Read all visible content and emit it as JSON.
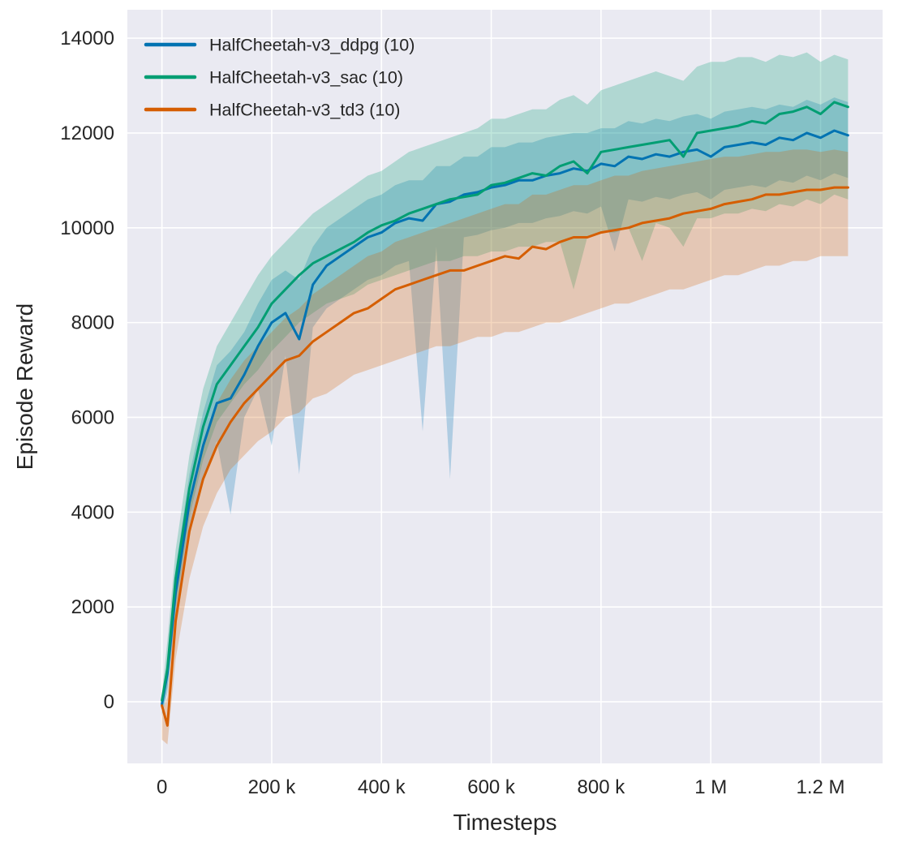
{
  "chart_data": {
    "type": "line",
    "title": "",
    "xlabel": "Timesteps",
    "ylabel": "Episode Reward",
    "legend_position": "upper-left",
    "legend_frame": false,
    "grid": true,
    "xlim_kilosteps": [
      -63,
      1313
    ],
    "ylim": [
      -1300,
      14600
    ],
    "x_ticks": {
      "values_kilosteps": [
        0,
        200,
        400,
        600,
        800,
        1000,
        1200
      ],
      "labels": [
        "0",
        "200 k",
        "400 k",
        "600 k",
        "800 k",
        "1 M",
        "1.2 M"
      ]
    },
    "y_ticks": {
      "values": [
        0,
        2000,
        4000,
        6000,
        8000,
        10000,
        12000,
        14000
      ],
      "labels": [
        "0",
        "2000",
        "4000",
        "6000",
        "8000",
        "10000",
        "12000",
        "14000"
      ]
    },
    "x_kilosteps": [
      0,
      10,
      25,
      50,
      75,
      100,
      125,
      150,
      175,
      200,
      225,
      250,
      275,
      300,
      325,
      350,
      375,
      400,
      425,
      450,
      475,
      500,
      525,
      550,
      575,
      600,
      625,
      650,
      675,
      700,
      725,
      750,
      775,
      800,
      825,
      850,
      875,
      900,
      925,
      950,
      975,
      1000,
      1025,
      1050,
      1075,
      1100,
      1125,
      1150,
      1175,
      1200,
      1225,
      1250
    ],
    "band_opacity": 0.25,
    "series": [
      {
        "name": "ddpg",
        "label": "HalfCheetah-v3_ddpg (10)",
        "color": "#0173b2",
        "values": [
          -50,
          600,
          2300,
          4200,
          5400,
          6300,
          6400,
          6900,
          7500,
          8000,
          8200,
          7650,
          8800,
          9200,
          9400,
          9600,
          9800,
          9900,
          10100,
          10200,
          10150,
          10500,
          10550,
          10700,
          10750,
          10850,
          10900,
          11000,
          11000,
          11100,
          11150,
          11250,
          11200,
          11350,
          11300,
          11500,
          11450,
          11550,
          11500,
          11600,
          11650,
          11500,
          11700,
          11750,
          11800,
          11750,
          11900,
          11850,
          12000,
          11900,
          12050,
          11950
        ],
        "band_upper": [
          100,
          900,
          2800,
          4800,
          6100,
          7100,
          7400,
          7800,
          8400,
          8900,
          9100,
          8900,
          9600,
          10000,
          10200,
          10400,
          10600,
          10700,
          10900,
          11000,
          11000,
          11300,
          11300,
          11500,
          11500,
          11700,
          11700,
          11800,
          11800,
          11900,
          11950,
          12000,
          12000,
          12100,
          12100,
          12250,
          12200,
          12300,
          12250,
          12350,
          12400,
          12300,
          12450,
          12500,
          12550,
          12500,
          12600,
          12550,
          12700,
          12600,
          12750,
          12650
        ],
        "band_lower": [
          -300,
          200,
          1800,
          3600,
          4700,
          5500,
          3950,
          6000,
          6600,
          5400,
          7300,
          4800,
          7900,
          8300,
          8500,
          8700,
          8900,
          9000,
          9200,
          9300,
          5700,
          9600,
          4700,
          9800,
          9850,
          9950,
          10000,
          10100,
          10100,
          10200,
          10250,
          10350,
          10300,
          10450,
          9500,
          10600,
          10550,
          10650,
          10600,
          10700,
          10750,
          10600,
          10800,
          10850,
          10900,
          10850,
          11000,
          10950,
          11100,
          11000,
          11150,
          11050
        ]
      },
      {
        "name": "sac",
        "label": "HalfCheetah-v3_sac (10)",
        "color": "#029e73",
        "values": [
          30,
          700,
          2600,
          4500,
          5800,
          6700,
          7100,
          7500,
          7900,
          8400,
          8700,
          9000,
          9250,
          9400,
          9550,
          9700,
          9900,
          10050,
          10150,
          10300,
          10400,
          10500,
          10600,
          10650,
          10700,
          10900,
          10950,
          11050,
          11150,
          11100,
          11300,
          11400,
          11150,
          11600,
          11650,
          11700,
          11750,
          11800,
          11850,
          11500,
          12000,
          12050,
          12100,
          12150,
          12250,
          12200,
          12400,
          12450,
          12550,
          12400,
          12650,
          12550
        ],
        "band_upper": [
          150,
          1300,
          3200,
          5200,
          6600,
          7500,
          8000,
          8500,
          9000,
          9400,
          9700,
          10000,
          10300,
          10500,
          10700,
          10900,
          11100,
          11200,
          11400,
          11600,
          11700,
          11800,
          11900,
          12000,
          12100,
          12300,
          12300,
          12400,
          12500,
          12500,
          12700,
          12800,
          12600,
          12900,
          13000,
          13100,
          13200,
          13300,
          13200,
          13100,
          13400,
          13500,
          13500,
          13600,
          13600,
          13500,
          13650,
          13600,
          13700,
          13500,
          13650,
          13550
        ],
        "band_lower": [
          -250,
          300,
          2000,
          3900,
          5100,
          5900,
          6300,
          6700,
          7000,
          7400,
          7700,
          8000,
          8200,
          8400,
          8500,
          8600,
          8800,
          8900,
          9000,
          9100,
          9200,
          9300,
          9300,
          9400,
          9400,
          9500,
          9500,
          9600,
          9600,
          9700,
          9700,
          8700,
          9800,
          9900,
          9900,
          10000,
          9300,
          10100,
          10000,
          9600,
          10200,
          10200,
          10300,
          10300,
          10400,
          10350,
          10500,
          10450,
          10600,
          10500,
          10700,
          10600
        ]
      },
      {
        "name": "td3",
        "label": "HalfCheetah-v3_td3 (10)",
        "color": "#d55e00",
        "values": [
          -80,
          -500,
          1700,
          3600,
          4700,
          5400,
          5900,
          6300,
          6600,
          6900,
          7200,
          7300,
          7600,
          7800,
          8000,
          8200,
          8300,
          8500,
          8700,
          8800,
          8900,
          9000,
          9100,
          9100,
          9200,
          9300,
          9400,
          9350,
          9600,
          9550,
          9700,
          9800,
          9800,
          9900,
          9950,
          10000,
          10100,
          10150,
          10200,
          10300,
          10350,
          10400,
          10500,
          10550,
          10600,
          10700,
          10700,
          10750,
          10800,
          10800,
          10850,
          10850
        ],
        "band_upper": [
          -200,
          100,
          2300,
          4300,
          5500,
          6300,
          6800,
          7200,
          7500,
          7800,
          8100,
          8300,
          8600,
          8800,
          9000,
          9200,
          9400,
          9500,
          9700,
          9800,
          9900,
          10000,
          10100,
          10200,
          10300,
          10400,
          10500,
          10500,
          10700,
          10700,
          10800,
          10900,
          10900,
          11000,
          11100,
          11100,
          11200,
          11250,
          11300,
          11350,
          11400,
          11450,
          11500,
          11500,
          11550,
          11600,
          11600,
          11650,
          11650,
          11600,
          11650,
          11600
        ],
        "band_lower": [
          -800,
          -900,
          900,
          2600,
          3700,
          4400,
          4900,
          5200,
          5500,
          5700,
          6000,
          6100,
          6400,
          6500,
          6700,
          6900,
          7000,
          7100,
          7200,
          7300,
          7400,
          7500,
          7500,
          7600,
          7700,
          7700,
          7800,
          7800,
          7900,
          8000,
          8000,
          8100,
          8200,
          8300,
          8400,
          8400,
          8500,
          8600,
          8700,
          8700,
          8800,
          8900,
          9000,
          9000,
          9100,
          9200,
          9200,
          9300,
          9300,
          9400,
          9400,
          9400
        ]
      }
    ]
  },
  "style": {
    "plot_background": "#eaeaf2",
    "figure_background": "#ffffff",
    "grid_color": "#ffffff",
    "text_color": "#262626"
  }
}
